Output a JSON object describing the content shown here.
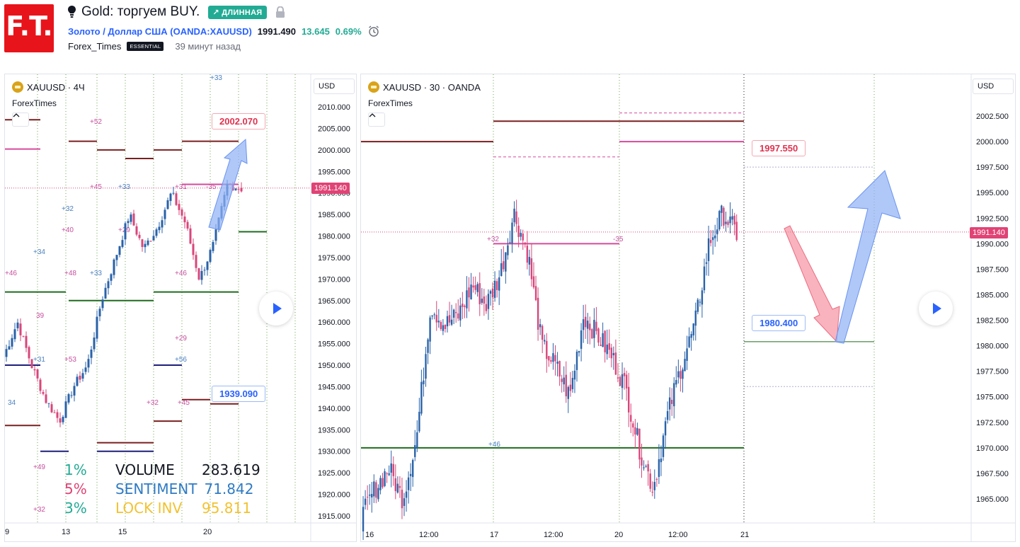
{
  "header": {
    "logo_text": "F.T.",
    "idea_title": "Gold: торгуем BUY.",
    "direction_badge": "↗ ДЛИННАЯ",
    "symbol_name": "Золото / Доллар США",
    "symbol_ticker": "(OANDA:XAUUSD)",
    "price": "1991.490",
    "change": "13.645",
    "change_pct": "0.69%",
    "author": "Forex_Times",
    "author_badge": "ESSENTIAL",
    "published": "39 минут назад"
  },
  "colors": {
    "up": "#2962a8",
    "down": "#d8467a",
    "brand": "#e8141b",
    "accent": "#2962ff",
    "positive": "#22ab94"
  },
  "left_chart": {
    "symbol_label": "XAUUSD · 4Ч",
    "indicator": "ForexTimes",
    "currency_button": "USD",
    "last_price_tag": "1991.140",
    "callout_top": "2002.070",
    "callout_bottom": "1939.090",
    "price_axis": [
      "2010.000",
      "2005.000",
      "2000.000",
      "1995.000",
      "1990.000",
      "1985.000",
      "1980.000",
      "1975.000",
      "1970.000",
      "1965.000",
      "1960.000",
      "1955.000",
      "1950.000",
      "1945.000",
      "1940.000",
      "1935.000",
      "1930.000",
      "1925.000",
      "1920.000",
      "1915.000"
    ],
    "time_axis": [
      "9",
      "13",
      "15",
      "20"
    ],
    "stats": {
      "pct1": "1%",
      "pct2": "5%",
      "pct3": "3%",
      "volume_label": "VOLUME",
      "volume_value": "283.619",
      "sentiment_label": "SENTIMENT",
      "sentiment_value": "71.842",
      "lock_label": "LOCK INV",
      "lock_value": "95.811"
    },
    "level_tags": [
      "+33",
      "+52",
      "+45",
      "+33",
      "+31",
      "-35",
      "+32",
      "+40",
      "+29",
      "+34",
      "+46",
      "+48",
      "+33",
      "+46",
      "39",
      "+31",
      "+53",
      "+29",
      "+56",
      "+32",
      "+45",
      "34",
      "+49",
      "+32"
    ]
  },
  "right_chart": {
    "symbol_label": "XAUUSD · 30 · OANDA",
    "indicator": "ForexTimes",
    "currency_button": "USD",
    "last_price_tag": "1991.140",
    "callout_top": "1997.550",
    "callout_mid": "1980.400",
    "price_axis": [
      "2002.500",
      "2000.000",
      "1997.500",
      "1995.000",
      "1992.500",
      "1990.000",
      "1987.500",
      "1985.000",
      "1982.500",
      "1980.000",
      "1977.500",
      "1975.000",
      "1972.500",
      "1970.000",
      "1967.500",
      "1965.000"
    ],
    "time_axis": [
      "16",
      "12:00",
      "17",
      "12:00",
      "20",
      "12:00",
      "21"
    ],
    "level_tags": [
      "+32",
      "-35",
      "+46"
    ]
  }
}
